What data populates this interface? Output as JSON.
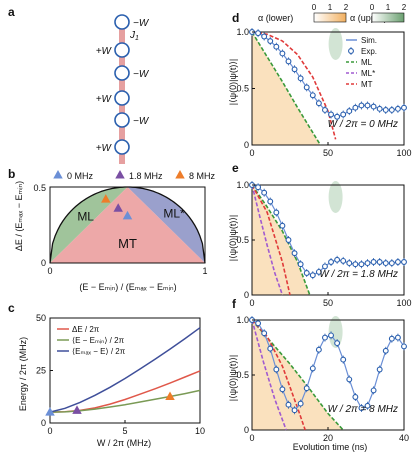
{
  "panel_a": {
    "label": "a",
    "sites": [
      {
        "term": "−W",
        "side": "right"
      },
      {
        "term": "+W",
        "side": "left"
      },
      {
        "term": "−W",
        "side": "right"
      },
      {
        "term": "+W",
        "side": "left"
      },
      {
        "term": "−W",
        "side": "right"
      },
      {
        "term": "+W",
        "side": "left"
      }
    ],
    "coupling_label": "J",
    "coupling_sub": "1"
  },
  "panel_b": {
    "label": "b",
    "legend": [
      {
        "label": "0 MHz",
        "color": "#6b8fd6"
      },
      {
        "label": "1.8 MHz",
        "color": "#7a4fa3"
      },
      {
        "label": "8 MHz",
        "color": "#ee7d2a"
      }
    ],
    "regions": [
      {
        "label": "ML",
        "color": "#8fba8a"
      },
      {
        "label": "ML*",
        "color": "#8f96c6"
      },
      {
        "label": "MT",
        "color": "#eca3a3"
      }
    ],
    "ylabel": "ΔE / (Eₘₐₓ − Eₘᵢₙ)",
    "xlabel": "(E − Eₘᵢₙ) / (Eₘₐₓ − Eₘᵢₙ)",
    "xticks": [
      "0",
      "1"
    ],
    "yticks": [
      "0",
      "0.5"
    ],
    "markers": [
      {
        "x": 0.36,
        "y": 0.42,
        "color": "#ee7d2a"
      },
      {
        "x": 0.44,
        "y": 0.36,
        "color": "#7a4fa3"
      },
      {
        "x": 0.5,
        "y": 0.31,
        "color": "#6b8fd6"
      }
    ]
  },
  "panel_c": {
    "label": "c",
    "ylabel": "Energy / 2π (MHz)",
    "xlabel": "W / 2π (MHz)",
    "xticks": [
      "0",
      "5",
      "10"
    ],
    "yticks": [
      "0",
      "25",
      "50"
    ],
    "legend": [
      {
        "label": "ΔE / 2π",
        "color": "#e0584a"
      },
      {
        "label": "⟨E − Eₘᵢₙ⟩ / 2π",
        "color": "#7a9a55"
      },
      {
        "label": "⟨Eₘₐₓ − E⟩ / 2π",
        "color": "#3f4f9a"
      }
    ]
  },
  "panels_def": {
    "label_alpha_lower": "α (lower)",
    "label_alpha_upper": "α (upper)",
    "cbar_ticks": [
      "0",
      "1",
      "2"
    ],
    "ylabel": "|⟨ψ(0)|ψ(t)⟩|",
    "xlabel": "Evolution time (ns)",
    "legend": [
      {
        "label": "Sim.",
        "color": "#6b8fd6"
      },
      {
        "label": "Exp.",
        "color": "#2a5fae"
      },
      {
        "label": "ML",
        "color": "#3a9a3a"
      },
      {
        "label": "ML*",
        "color": "#a05ad0"
      },
      {
        "label": "MT",
        "color": "#e03a3a"
      }
    ],
    "panels": [
      {
        "label": "d",
        "annotation": "W / 2π = 0 MHz",
        "xticks": [
          "0",
          "50",
          "100"
        ],
        "yticks": [
          "0",
          "0.5",
          "1.0"
        ]
      },
      {
        "label": "e",
        "annotation": "W / 2π = 1.8 MHz",
        "xticks": [
          "0",
          "50",
          "100"
        ],
        "yticks": [
          "0",
          "0.5",
          "1.0"
        ]
      },
      {
        "label": "f",
        "annotation": "W / 2π = 8 MHz",
        "xticks": [
          "0",
          "20",
          "40"
        ],
        "yticks": [
          "0",
          "0.5",
          "1.0"
        ]
      }
    ]
  },
  "chart_data": [
    {
      "type": "line",
      "panel": "c",
      "xlabel": "W / 2π (MHz)",
      "ylabel": "Energy / 2π (MHz)",
      "xlim": [
        0,
        10
      ],
      "ylim": [
        0,
        50
      ],
      "x": [
        0,
        1,
        2,
        3,
        4,
        5,
        6,
        7,
        8,
        9,
        10
      ],
      "series": [
        {
          "name": "ΔE / 2π",
          "values": [
            5.2,
            5.4,
            6.0,
            7.2,
            9.0,
            11.2,
            13.7,
            16.3,
            19.0,
            21.9,
            24.8
          ]
        },
        {
          "name": "⟨E − Eₘᵢₙ⟩ / 2π",
          "values": [
            5.2,
            5.3,
            5.8,
            6.6,
            7.6,
            8.7,
            10.0,
            11.3,
            12.6,
            14.0,
            15.5
          ]
        },
        {
          "name": "⟨Eₘₐₓ − E⟩ / 2π",
          "values": [
            5.2,
            7.0,
            9.8,
            13.2,
            17.0,
            21.2,
            25.7,
            30.4,
            35.2,
            40.2,
            45.4
          ]
        }
      ],
      "markers": [
        {
          "x": 0,
          "y": 5.2,
          "color": "#6b8fd6"
        },
        {
          "x": 1.8,
          "y": 6.0,
          "color": "#7a4fa3"
        },
        {
          "x": 8,
          "y": 12.6,
          "color": "#ee7d2a"
        }
      ]
    },
    {
      "type": "scatter",
      "panel": "d",
      "xlabel": "Evolution time (ns)",
      "ylabel": "|⟨ψ(0)|ψ(t)⟩|",
      "xlim": [
        0,
        100
      ],
      "ylim": [
        0,
        1.0
      ],
      "exp_x": [
        0,
        4,
        8,
        12,
        16,
        20,
        24,
        28,
        32,
        36,
        40,
        44,
        48,
        52,
        56,
        60,
        64,
        68,
        72,
        76,
        80,
        84,
        88,
        92,
        96,
        100
      ],
      "exp_y": [
        1.0,
        0.99,
        0.96,
        0.92,
        0.87,
        0.81,
        0.74,
        0.67,
        0.59,
        0.51,
        0.44,
        0.37,
        0.31,
        0.27,
        0.25,
        0.27,
        0.3,
        0.33,
        0.35,
        0.35,
        0.34,
        0.32,
        0.31,
        0.31,
        0.32,
        0.33
      ],
      "ml_x": [
        0,
        10,
        20,
        30,
        40,
        45
      ],
      "ml_y": [
        1.0,
        0.78,
        0.56,
        0.33,
        0.11,
        0.0
      ],
      "mt_x": [
        0,
        10,
        20,
        30,
        40,
        50,
        55
      ],
      "mt_y": [
        1.0,
        0.98,
        0.92,
        0.8,
        0.6,
        0.3,
        0.05
      ]
    },
    {
      "type": "scatter",
      "panel": "e",
      "xlabel": "Evolution time (ns)",
      "ylabel": "|⟨ψ(0)|ψ(t)⟩|",
      "xlim": [
        0,
        100
      ],
      "ylim": [
        0,
        1.0
      ],
      "exp_x": [
        0,
        4,
        8,
        12,
        16,
        20,
        24,
        28,
        32,
        36,
        40,
        44,
        48,
        52,
        56,
        60,
        64,
        68,
        72,
        76,
        80,
        84,
        88,
        92,
        96,
        100
      ],
      "exp_y": [
        1.0,
        0.98,
        0.93,
        0.85,
        0.75,
        0.63,
        0.5,
        0.38,
        0.28,
        0.2,
        0.18,
        0.21,
        0.26,
        0.3,
        0.32,
        0.31,
        0.29,
        0.28,
        0.28,
        0.29,
        0.3,
        0.3,
        0.29,
        0.29,
        0.3,
        0.3
      ],
      "ml_x": [
        0,
        10,
        20,
        30,
        38
      ],
      "ml_y": [
        1.0,
        0.8,
        0.58,
        0.3,
        0.0
      ],
      "mls_x": [
        0,
        5,
        10,
        15,
        20
      ],
      "mls_y": [
        1.0,
        0.72,
        0.45,
        0.2,
        0.0
      ],
      "mt_x": [
        0,
        10,
        20,
        25
      ],
      "mt_y": [
        1.0,
        0.75,
        0.3,
        0.0
      ]
    },
    {
      "type": "scatter",
      "panel": "f",
      "xlabel": "Evolution time (ns)",
      "ylabel": "|⟨ψ(0)|ψ(t)⟩|",
      "xlim": [
        0,
        40
      ],
      "ylim": [
        0,
        1.0
      ],
      "exp_x": [
        0,
        1.6,
        3.2,
        4.8,
        6.4,
        8,
        9.6,
        11.2,
        12.8,
        14.4,
        16,
        17.6,
        19.2,
        20.8,
        22.4,
        24,
        25.6,
        27.2,
        28.8,
        30.4,
        32,
        33.6,
        35.2,
        36.8,
        38.4,
        40
      ],
      "exp_y": [
        1.0,
        0.97,
        0.88,
        0.74,
        0.55,
        0.37,
        0.23,
        0.18,
        0.24,
        0.38,
        0.56,
        0.73,
        0.84,
        0.86,
        0.79,
        0.64,
        0.46,
        0.3,
        0.2,
        0.22,
        0.36,
        0.55,
        0.72,
        0.83,
        0.84,
        0.76
      ],
      "ml_x": [
        0,
        5,
        10,
        15,
        20,
        24
      ],
      "ml_y": [
        1.0,
        0.8,
        0.6,
        0.38,
        0.15,
        0.0
      ],
      "mls_x": [
        0,
        3,
        6,
        9
      ],
      "mls_y": [
        1.0,
        0.62,
        0.28,
        0.0
      ],
      "mt_x": [
        0,
        4,
        8,
        12,
        14
      ],
      "mt_y": [
        1.0,
        0.85,
        0.58,
        0.2,
        0.0
      ]
    }
  ]
}
